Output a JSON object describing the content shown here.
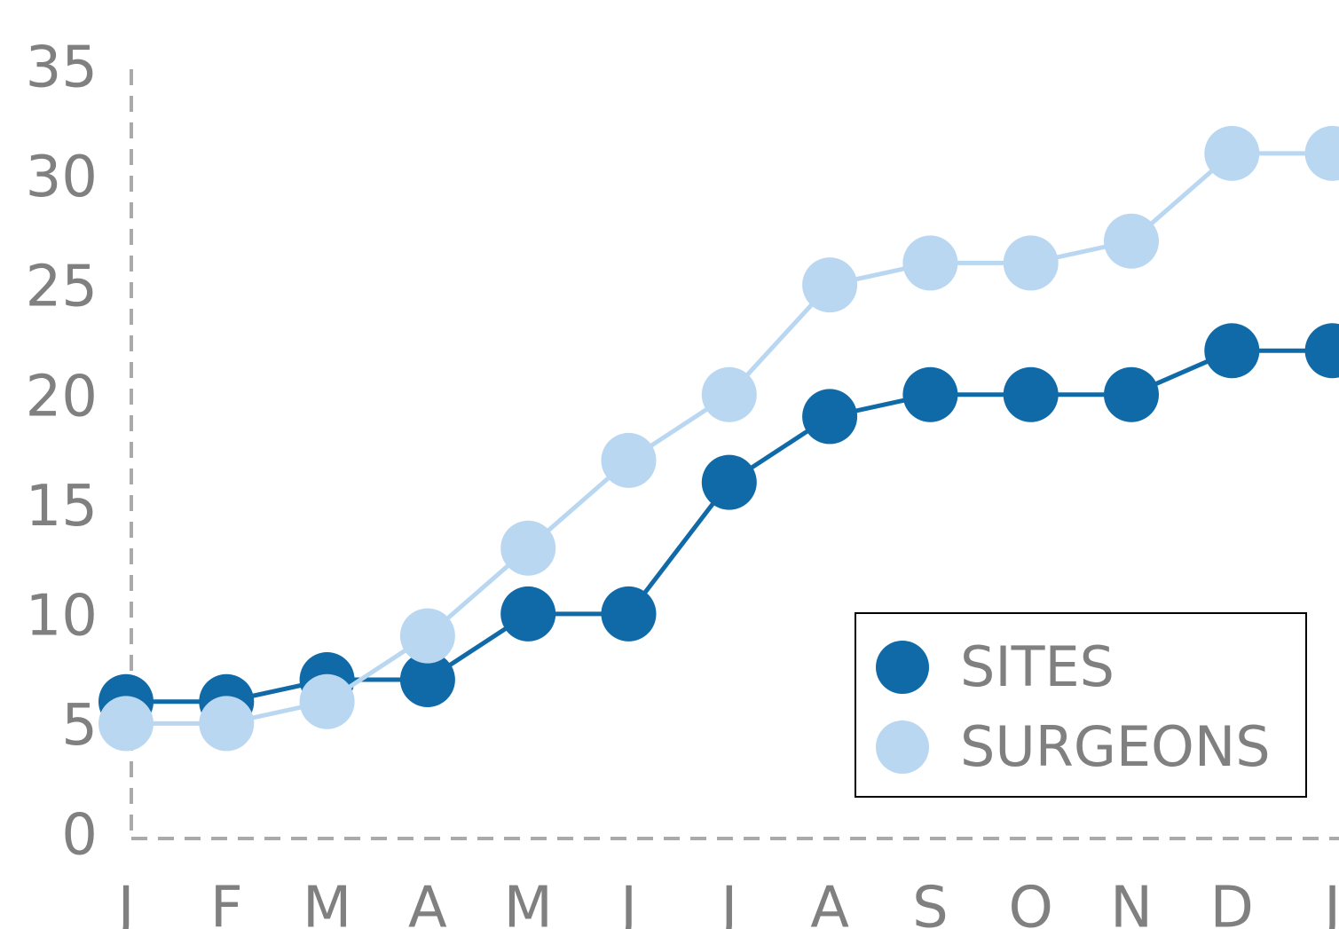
{
  "chart_data": {
    "type": "line",
    "categories": [
      "J",
      "F",
      "M",
      "A",
      "M",
      "J",
      "J",
      "A",
      "S",
      "O",
      "N",
      "D",
      "J"
    ],
    "series": [
      {
        "name": "SITES",
        "color": "#106aa8",
        "values": [
          6,
          6,
          7,
          7,
          10,
          10,
          16,
          19,
          20,
          20,
          20,
          22,
          22
        ]
      },
      {
        "name": "SURGEONS",
        "color": "#bad7f2",
        "values": [
          5,
          5,
          6,
          9,
          13,
          17,
          20,
          25,
          26,
          26,
          27,
          31,
          31
        ]
      }
    ],
    "ylim": [
      0,
      35
    ],
    "yticks": [
      0,
      5,
      10,
      15,
      20,
      25,
      30,
      35
    ],
    "grid": false,
    "legend": "lower right"
  }
}
